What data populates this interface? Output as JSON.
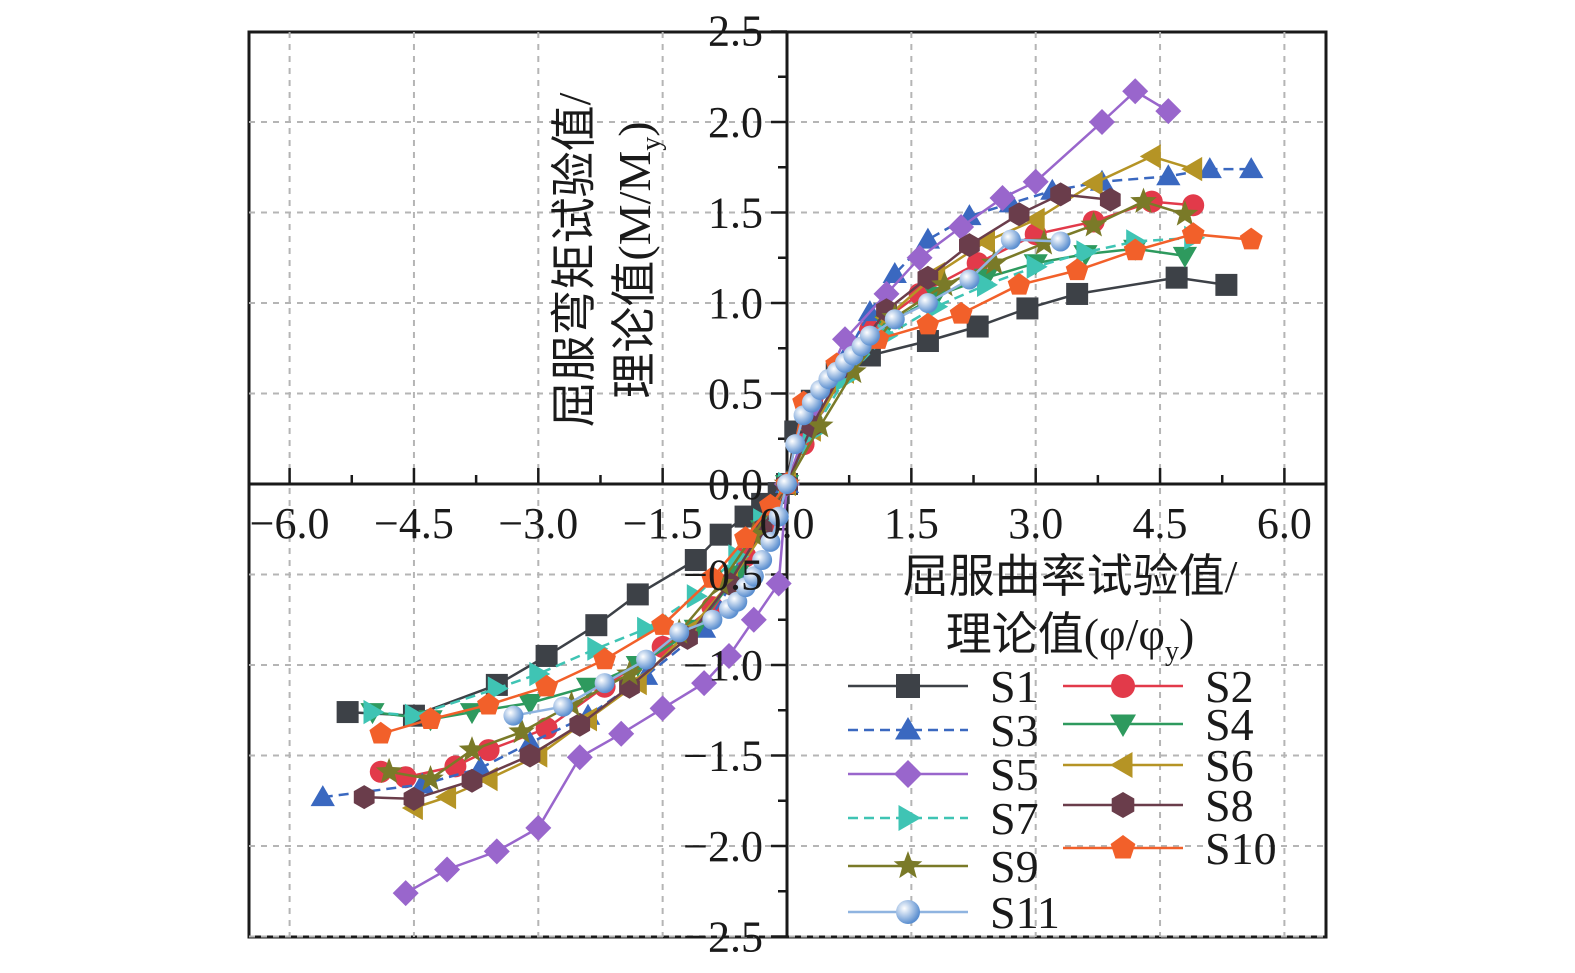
{
  "chart_data": {
    "type": "scatter",
    "title": "",
    "xlabel_lines": [
      "屈服曲率试验值/",
      "理论值(φ/φ",
      "y",
      ")"
    ],
    "ylabel_lines": [
      "屈服弯矩试验值/",
      "理论值(M/M",
      "y",
      ")"
    ],
    "xlim": [
      -6.0,
      6.0
    ],
    "ylim": [
      -2.5,
      2.5
    ],
    "x_ticks": [
      -6.0,
      -4.5,
      -3.0,
      -1.5,
      0.0,
      1.5,
      3.0,
      4.5,
      6.0
    ],
    "x_tick_labels": [
      "−6.0",
      "−4.5",
      "−3.0",
      "−1.5",
      "0.0",
      "1.5",
      "3.0",
      "4.5",
      "6.0"
    ],
    "y_ticks": [
      -2.5,
      -2.0,
      -1.5,
      -1.0,
      -0.5,
      0.0,
      0.5,
      1.0,
      1.5,
      2.0,
      2.5
    ],
    "y_tick_labels": [
      "−2.5",
      "−2.0",
      "−1.5",
      "−1.0",
      "−0.5",
      "0.0",
      "0.5",
      "1.0",
      "1.5",
      "2.0",
      "2.5"
    ],
    "grid": true,
    "legend_position": "bottom-right",
    "series": [
      {
        "name": "S1",
        "marker": "square",
        "color": "#3d4147",
        "dashed": false,
        "x": [
          -5.3,
          -4.5,
          -3.5,
          -2.9,
          -2.3,
          -1.8,
          -1.1,
          -0.8,
          -0.5,
          -0.3,
          -0.1,
          0.0,
          0.1,
          0.3,
          0.6,
          1.0,
          1.7,
          2.3,
          2.9,
          3.5,
          4.7,
          5.3
        ],
        "y": [
          -1.26,
          -1.28,
          -1.11,
          -0.95,
          -0.78,
          -0.61,
          -0.42,
          -0.28,
          -0.18,
          -0.11,
          -0.05,
          0.0,
          0.29,
          0.46,
          0.61,
          0.71,
          0.79,
          0.87,
          0.97,
          1.05,
          1.14,
          1.1
        ]
      },
      {
        "name": "S2",
        "marker": "circle",
        "color": "#e23a4a",
        "dashed": false,
        "x": [
          -4.9,
          -4.6,
          -4.0,
          -3.6,
          -2.9,
          -2.2,
          -1.5,
          -0.9,
          -0.5,
          -0.2,
          0.0,
          0.2,
          0.5,
          1.0,
          1.6,
          2.3,
          3.0,
          3.7,
          4.4,
          4.9
        ],
        "y": [
          -1.59,
          -1.62,
          -1.56,
          -1.47,
          -1.35,
          -1.12,
          -0.9,
          -0.68,
          -0.4,
          -0.2,
          0.0,
          0.22,
          0.55,
          0.85,
          1.05,
          1.22,
          1.38,
          1.45,
          1.56,
          1.54
        ]
      },
      {
        "name": "S3",
        "marker": "triangle-up",
        "color": "#3a68c0",
        "dashed": true,
        "x": [
          -5.6,
          -4.4,
          -3.7,
          -3.1,
          -2.4,
          -1.7,
          -1.0,
          -0.6,
          -0.3,
          0.0,
          0.3,
          0.7,
          1.0,
          1.3,
          1.7,
          2.2,
          2.7,
          3.2,
          3.8,
          4.6,
          5.1,
          5.6
        ],
        "y": [
          -1.73,
          -1.66,
          -1.57,
          -1.43,
          -1.28,
          -1.06,
          -0.8,
          -0.5,
          -0.25,
          0.0,
          0.35,
          0.7,
          0.95,
          1.16,
          1.35,
          1.48,
          1.55,
          1.62,
          1.67,
          1.7,
          1.74,
          1.74
        ]
      },
      {
        "name": "S4",
        "marker": "triangle-down",
        "color": "#2e9a5e",
        "dashed": false,
        "x": [
          -5.0,
          -4.3,
          -3.8,
          -3.1,
          -2.4,
          -1.8,
          -1.1,
          -0.6,
          -0.3,
          0.0,
          0.3,
          0.7,
          1.2,
          1.8,
          2.4,
          3.0,
          3.6,
          4.2,
          4.8
        ],
        "y": [
          -1.26,
          -1.3,
          -1.26,
          -1.21,
          -1.12,
          -1.0,
          -0.8,
          -0.5,
          -0.25,
          0.0,
          0.3,
          0.62,
          0.88,
          1.04,
          1.14,
          1.22,
          1.27,
          1.3,
          1.26
        ]
      },
      {
        "name": "S5",
        "marker": "diamond",
        "color": "#9966cc",
        "dashed": false,
        "x": [
          -4.6,
          -4.1,
          -3.5,
          -3.0,
          -2.5,
          -2.0,
          -1.5,
          -1.0,
          -0.7,
          -0.4,
          -0.1,
          0.0,
          0.3,
          0.7,
          1.2,
          1.6,
          2.1,
          2.6,
          3.0,
          3.8,
          4.2,
          4.6
        ],
        "y": [
          -2.26,
          -2.13,
          -2.03,
          -1.9,
          -1.51,
          -1.38,
          -1.24,
          -1.1,
          -0.95,
          -0.75,
          -0.55,
          0.0,
          0.4,
          0.8,
          1.05,
          1.25,
          1.42,
          1.58,
          1.67,
          2.0,
          2.17,
          2.06
        ]
      },
      {
        "name": "S6",
        "marker": "triangle-left",
        "color": "#b59425",
        "dashed": false,
        "x": [
          -4.5,
          -4.1,
          -3.6,
          -3.0,
          -2.4,
          -1.8,
          -1.2,
          -0.7,
          -0.3,
          0.0,
          0.3,
          0.7,
          1.2,
          1.8,
          2.4,
          3.0,
          3.7,
          4.4,
          4.9
        ],
        "y": [
          -1.79,
          -1.73,
          -1.63,
          -1.5,
          -1.3,
          -1.1,
          -0.82,
          -0.55,
          -0.28,
          0.0,
          0.3,
          0.62,
          0.92,
          1.16,
          1.34,
          1.46,
          1.66,
          1.81,
          1.74
        ]
      },
      {
        "name": "S7",
        "marker": "triangle-right",
        "color": "#3fc4b4",
        "dashed": true,
        "x": [
          -5.0,
          -4.5,
          -3.5,
          -3.0,
          -2.3,
          -1.7,
          -1.1,
          -0.6,
          -0.3,
          0.0,
          0.3,
          0.7,
          1.2,
          1.8,
          2.4,
          3.0,
          3.6,
          4.2,
          4.9
        ],
        "y": [
          -1.26,
          -1.28,
          -1.13,
          -1.05,
          -0.91,
          -0.8,
          -0.62,
          -0.4,
          -0.2,
          0.0,
          0.28,
          0.58,
          0.82,
          0.98,
          1.1,
          1.2,
          1.28,
          1.34,
          1.36
        ]
      },
      {
        "name": "S8",
        "marker": "hexagon",
        "color": "#6a3d4b",
        "dashed": false,
        "x": [
          -5.1,
          -4.5,
          -3.8,
          -3.1,
          -2.5,
          -1.9,
          -1.2,
          -0.7,
          -0.3,
          0.0,
          0.3,
          0.7,
          1.2,
          1.7,
          2.2,
          2.8,
          3.3,
          3.9
        ],
        "y": [
          -1.73,
          -1.74,
          -1.64,
          -1.5,
          -1.33,
          -1.12,
          -0.85,
          -0.55,
          -0.25,
          0.0,
          0.32,
          0.65,
          0.96,
          1.14,
          1.32,
          1.49,
          1.6,
          1.57
        ]
      },
      {
        "name": "S9",
        "marker": "star",
        "color": "#7a7a28",
        "dashed": false,
        "x": [
          -4.8,
          -4.3,
          -3.8,
          -3.2,
          -2.6,
          -1.9,
          -1.3,
          -0.8,
          -0.4,
          0.0,
          0.4,
          0.8,
          1.3,
          1.9,
          2.5,
          3.1,
          3.7,
          4.3,
          4.8
        ],
        "y": [
          -1.59,
          -1.63,
          -1.47,
          -1.37,
          -1.22,
          -1.05,
          -0.82,
          -0.55,
          -0.28,
          0.0,
          0.32,
          0.62,
          0.92,
          1.1,
          1.22,
          1.33,
          1.43,
          1.56,
          1.49
        ]
      },
      {
        "name": "S10",
        "marker": "pentagon",
        "color": "#f2602a",
        "dashed": false,
        "x": [
          -4.9,
          -4.3,
          -3.6,
          -2.9,
          -2.2,
          -1.5,
          -0.9,
          -0.5,
          -0.2,
          0.0,
          0.2,
          0.6,
          1.1,
          1.7,
          2.1,
          2.8,
          3.5,
          4.2,
          4.9,
          5.6
        ],
        "y": [
          -1.38,
          -1.3,
          -1.22,
          -1.12,
          -0.97,
          -0.78,
          -0.52,
          -0.3,
          -0.12,
          0.0,
          0.45,
          0.66,
          0.8,
          0.88,
          0.94,
          1.1,
          1.18,
          1.29,
          1.38,
          1.35
        ]
      },
      {
        "name": "S11",
        "marker": "sphere",
        "color": "#8fb4e0",
        "dashed": false,
        "x": [
          -3.3,
          -2.7,
          -2.2,
          -1.7,
          -1.3,
          -0.9,
          -0.7,
          -0.6,
          -0.5,
          -0.4,
          -0.3,
          -0.2,
          -0.1,
          0.0,
          0.1,
          0.2,
          0.3,
          0.4,
          0.5,
          0.6,
          0.7,
          0.8,
          0.9,
          1.0,
          1.3,
          1.7,
          2.2,
          2.7,
          3.3
        ],
        "y": [
          -1.28,
          -1.23,
          -1.1,
          -0.97,
          -0.82,
          -0.75,
          -0.69,
          -0.65,
          -0.57,
          -0.51,
          -0.42,
          -0.32,
          -0.18,
          0.0,
          0.22,
          0.38,
          0.45,
          0.52,
          0.58,
          0.62,
          0.67,
          0.71,
          0.76,
          0.82,
          0.91,
          1.0,
          1.13,
          1.35,
          1.34
        ]
      }
    ]
  }
}
